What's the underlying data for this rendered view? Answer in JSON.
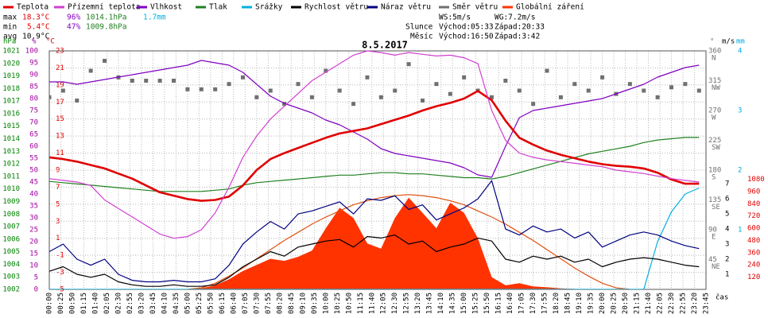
{
  "title": "8.5.2017",
  "header": {
    "stats": {
      "max": {
        "label": "max",
        "temp": "18.3°C",
        "humidity": "96%",
        "pressure": "1014.1hPa",
        "rain": "1.7mm"
      },
      "min": {
        "label": "min",
        "temp": "5.4°C",
        "humidity": "47%",
        "pressure": "1009.8hPa"
      },
      "avg": {
        "label": "avg",
        "temp": "10.9°C"
      }
    },
    "wind": {
      "ws": "WS:5m/s",
      "wg": "WG:7.2m/s"
    },
    "sun": {
      "label": "Slunce",
      "rise": "Východ:05:33",
      "set": "Západ:20:33"
    },
    "moon": {
      "label": "Měsíc",
      "rise": "Východ:16:50",
      "set": "Západ:3:42"
    }
  },
  "x_axis": {
    "label": "čas",
    "xlim": [
      "00:00",
      "23:45"
    ],
    "x": [
      "00:00",
      "00:30",
      "01:00",
      "01:30",
      "02:00",
      "02:30",
      "03:00",
      "03:30",
      "04:00",
      "04:30",
      "05:00",
      "05:30",
      "06:00",
      "06:30",
      "07:00",
      "07:30",
      "08:00",
      "08:30",
      "09:00",
      "09:30",
      "10:00",
      "10:30",
      "11:00",
      "11:30",
      "12:00",
      "12:30",
      "13:00",
      "13:30",
      "14:00",
      "14:30",
      "15:00",
      "15:30",
      "16:00",
      "16:30",
      "17:00",
      "17:30",
      "18:00",
      "18:30",
      "19:00",
      "19:30",
      "20:00",
      "20:30",
      "21:00",
      "21:30",
      "22:00",
      "22:30",
      "23:00",
      "23:30"
    ],
    "xticks": [
      "00:00",
      "00:25",
      "00:50",
      "01:15",
      "01:40",
      "02:05",
      "02:30",
      "02:55",
      "03:20",
      "03:45",
      "04:10",
      "04:35",
      "05:00",
      "05:25",
      "05:50",
      "06:15",
      "06:40",
      "07:05",
      "07:30",
      "07:55",
      "08:20",
      "08:45",
      "09:10",
      "09:35",
      "10:00",
      "10:25",
      "10:50",
      "11:15",
      "11:40",
      "12:05",
      "12:30",
      "12:55",
      "13:20",
      "13:45",
      "14:10",
      "14:35",
      "15:00",
      "15:25",
      "15:50",
      "16:15",
      "16:40",
      "17:05",
      "17:30",
      "17:55",
      "18:20",
      "18:45",
      "19:10",
      "19:35",
      "20:00",
      "20:25",
      "20:50",
      "21:15",
      "21:40",
      "22:05",
      "22:30",
      "22:55",
      "23:20",
      "23:45"
    ]
  },
  "chart_data": [
    {
      "type": "line",
      "ylabel": "°C",
      "color": "#e00000",
      "grid": true,
      "ylim": [
        -5,
        23
      ],
      "yticks": [
        -5,
        -3,
        -1,
        1,
        3,
        5,
        7,
        9,
        11,
        13,
        15,
        17,
        19,
        21,
        23
      ],
      "series": [
        {
          "name": "Teplota",
          "color": "#e00000",
          "values": [
            10.5,
            10.3,
            10.0,
            9.6,
            9.2,
            8.6,
            8.0,
            7.2,
            6.4,
            6.0,
            5.6,
            5.4,
            5.5,
            5.9,
            7.2,
            9.0,
            10.3,
            11.0,
            11.6,
            12.2,
            12.8,
            13.3,
            13.6,
            13.9,
            14.4,
            14.9,
            15.4,
            16.0,
            16.5,
            16.9,
            17.4,
            18.3,
            17.2,
            14.8,
            12.8,
            12.0,
            11.3,
            10.8,
            10.4,
            10.0,
            9.7,
            9.5,
            9.4,
            9.2,
            8.7,
            7.9,
            7.4,
            7.4
          ]
        },
        {
          "name": "Přízemní teplota",
          "color": "#d040d0",
          "values": [
            8.0,
            7.8,
            7.6,
            7.2,
            5.5,
            4.5,
            3.5,
            2.5,
            1.5,
            1.0,
            1.2,
            2.0,
            4.0,
            7.0,
            10.5,
            13.0,
            15.0,
            16.5,
            18.0,
            19.5,
            20.5,
            21.5,
            22.5,
            23.0,
            22.8,
            22.5,
            22.8,
            22.6,
            22.4,
            22.5,
            22.2,
            21.5,
            16.0,
            12.5,
            11.0,
            10.5,
            10.2,
            10.0,
            9.8,
            9.6,
            9.4,
            9.0,
            8.8,
            8.6,
            8.3,
            8.0,
            7.8,
            7.6
          ]
        }
      ]
    },
    {
      "type": "line",
      "ylabel": "%",
      "color": "#a000a0",
      "ylim": [
        0,
        100
      ],
      "yticks": [
        0,
        5,
        10,
        15,
        20,
        25,
        30,
        35,
        40,
        45,
        50,
        55,
        60,
        65,
        70,
        75,
        80,
        85,
        90,
        95,
        100
      ],
      "series": [
        {
          "name": "Vlhkost",
          "color": "#8000c0",
          "values": [
            87,
            87,
            86,
            87,
            88,
            89,
            90,
            91,
            92,
            93,
            94,
            96,
            95,
            94,
            91,
            86,
            81,
            78,
            76,
            74,
            71,
            69,
            66,
            63,
            59,
            57,
            56,
            55,
            54,
            53,
            51,
            48,
            47,
            60,
            72,
            75,
            76,
            77,
            78,
            79,
            80,
            82,
            84,
            86,
            89,
            91,
            93,
            94
          ]
        }
      ]
    },
    {
      "type": "line",
      "ylabel": "hPa",
      "color": "#008000",
      "ylim": [
        1002,
        1021
      ],
      "yticks": [
        1002,
        1003,
        1004,
        1005,
        1006,
        1007,
        1008,
        1009,
        1010,
        1011,
        1012,
        1013,
        1014,
        1015,
        1016,
        1017,
        1018,
        1019,
        1020,
        1021
      ],
      "series": [
        {
          "name": "Tlak",
          "color": "#208020",
          "values": [
            1010.6,
            1010.5,
            1010.4,
            1010.3,
            1010.2,
            1010.1,
            1010.0,
            1009.9,
            1009.8,
            1009.8,
            1009.8,
            1009.8,
            1009.9,
            1010.0,
            1010.3,
            1010.5,
            1010.6,
            1010.7,
            1010.8,
            1010.9,
            1011.0,
            1011.1,
            1011.1,
            1011.2,
            1011.3,
            1011.3,
            1011.2,
            1011.2,
            1011.1,
            1011.0,
            1010.9,
            1010.9,
            1010.8,
            1011.0,
            1011.3,
            1011.6,
            1011.9,
            1012.2,
            1012.5,
            1012.8,
            1013.0,
            1013.2,
            1013.4,
            1013.7,
            1013.9,
            1014.0,
            1014.1,
            1014.1
          ]
        }
      ]
    },
    {
      "type": "line",
      "ylabel": "mm",
      "color": "#00a8e0",
      "ylim": [
        0,
        4
      ],
      "yticks": [
        1,
        2,
        3,
        4
      ],
      "series": [
        {
          "name": "Srážky",
          "color": "#00b0e0",
          "values": [
            0,
            0,
            0,
            0,
            0,
            0,
            0,
            0,
            0,
            0,
            0,
            0,
            0,
            0,
            0,
            0,
            0,
            0,
            0,
            0,
            0,
            0,
            0,
            0,
            0,
            0,
            0,
            0,
            0,
            0,
            0,
            0,
            0,
            0,
            0,
            0,
            0,
            0,
            0,
            0,
            0,
            0,
            0,
            0,
            0.8,
            1.3,
            1.6,
            1.7
          ]
        }
      ]
    },
    {
      "type": "line",
      "ylabel": "m/s",
      "color": "#000000",
      "ylim": [
        0,
        15.8
      ],
      "yticks": [
        1,
        2,
        3,
        4,
        5,
        6,
        7
      ],
      "series": [
        {
          "name": "Rychlost větru",
          "color": "#000000",
          "values": [
            1.2,
            1.5,
            1.0,
            0.8,
            1.0,
            0.5,
            0.3,
            0.2,
            0.2,
            0.3,
            0.2,
            0.2,
            0.3,
            0.8,
            1.5,
            2.0,
            2.5,
            2.2,
            2.8,
            3.0,
            3.2,
            3.3,
            2.8,
            3.5,
            3.4,
            3.6,
            3.0,
            3.2,
            2.5,
            2.8,
            3.0,
            3.4,
            3.2,
            2.0,
            1.8,
            2.2,
            2.0,
            2.2,
            1.8,
            2.0,
            1.5,
            1.8,
            2.0,
            2.1,
            2.0,
            1.8,
            1.6,
            1.5
          ]
        },
        {
          "name": "Náraz větru",
          "color": "#000080",
          "values": [
            2.5,
            3.0,
            2.0,
            1.6,
            2.0,
            1.0,
            0.6,
            0.5,
            0.5,
            0.6,
            0.5,
            0.5,
            0.7,
            1.6,
            3.0,
            3.8,
            4.5,
            4.0,
            5.0,
            5.2,
            5.5,
            5.8,
            5.0,
            6.0,
            5.9,
            6.2,
            5.3,
            5.6,
            4.6,
            5.0,
            5.4,
            6.0,
            7.2,
            4.0,
            3.6,
            4.2,
            3.8,
            4.0,
            3.4,
            3.8,
            2.8,
            3.2,
            3.6,
            3.8,
            3.6,
            3.2,
            2.9,
            2.7
          ]
        }
      ]
    },
    {
      "type": "scatter",
      "ylabel": "°",
      "color": "#707070",
      "ylim": [
        0,
        360
      ],
      "yticks": [
        45,
        90,
        135,
        180,
        225,
        270,
        315,
        360
      ],
      "ytick_directions": [
        "NE",
        "E",
        "SE",
        "S",
        "SW",
        "W",
        "NW",
        "N"
      ],
      "series": [
        {
          "name": "Směr větru",
          "color": "#707070",
          "values": [
            290,
            300,
            285,
            330,
            345,
            320,
            315,
            315,
            315,
            315,
            302,
            302,
            302,
            310,
            320,
            290,
            300,
            280,
            310,
            290,
            330,
            300,
            280,
            320,
            290,
            300,
            340,
            285,
            310,
            295,
            320,
            300,
            290,
            315,
            300,
            280,
            330,
            290,
            310,
            300,
            320,
            295,
            310,
            300,
            290,
            305,
            310,
            300
          ]
        }
      ]
    },
    {
      "type": "area",
      "color": "#e00000",
      "ylim": [
        0,
        2340
      ],
      "yticks": [
        120,
        240,
        360,
        480,
        600,
        720,
        840,
        960,
        1080
      ],
      "series": [
        {
          "name": "Globální záření",
          "color": "#ff3300",
          "values": [
            0,
            0,
            0,
            0,
            0,
            0,
            0,
            0,
            0,
            0,
            0,
            10,
            40,
            100,
            180,
            240,
            300,
            280,
            320,
            380,
            600,
            800,
            700,
            450,
            400,
            700,
            900,
            750,
            600,
            850,
            750,
            500,
            120,
            40,
            60,
            30,
            20,
            10,
            5,
            0,
            0,
            0,
            0,
            0,
            0,
            0,
            0,
            0
          ]
        },
        {
          "type": "line",
          "color": "#e05010",
          "values": [
            null,
            null,
            null,
            null,
            null,
            null,
            null,
            null,
            null,
            null,
            0,
            15,
            60,
            130,
            210,
            300,
            390,
            480,
            560,
            640,
            710,
            770,
            830,
            870,
            900,
            920,
            930,
            920,
            900,
            870,
            830,
            770,
            710,
            640,
            560,
            480,
            390,
            300,
            210,
            130,
            60,
            15,
            0,
            null,
            null,
            null,
            null,
            null
          ]
        }
      ]
    }
  ]
}
